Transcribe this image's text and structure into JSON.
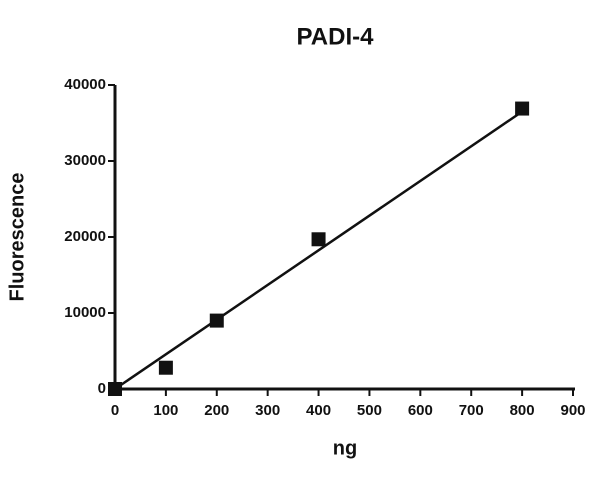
{
  "chart_data": {
    "type": "scatter",
    "title": "PADI-4",
    "x_label": "ng",
    "y_label": "Fluorescence",
    "x": [
      0,
      100,
      200,
      400,
      800
    ],
    "values": [
      0,
      2800,
      9000,
      19700,
      36900
    ],
    "color": "#111111",
    "fit": {
      "x": [
        0,
        800
      ],
      "values": [
        0,
        36500
      ]
    },
    "xlim": [
      0,
      900
    ],
    "xticks": [
      0,
      100,
      200,
      300,
      400,
      500,
      600,
      700,
      800,
      900
    ],
    "ylim": [
      0,
      40000
    ],
    "yticks": [
      0,
      10000,
      20000,
      30000,
      40000
    ]
  }
}
